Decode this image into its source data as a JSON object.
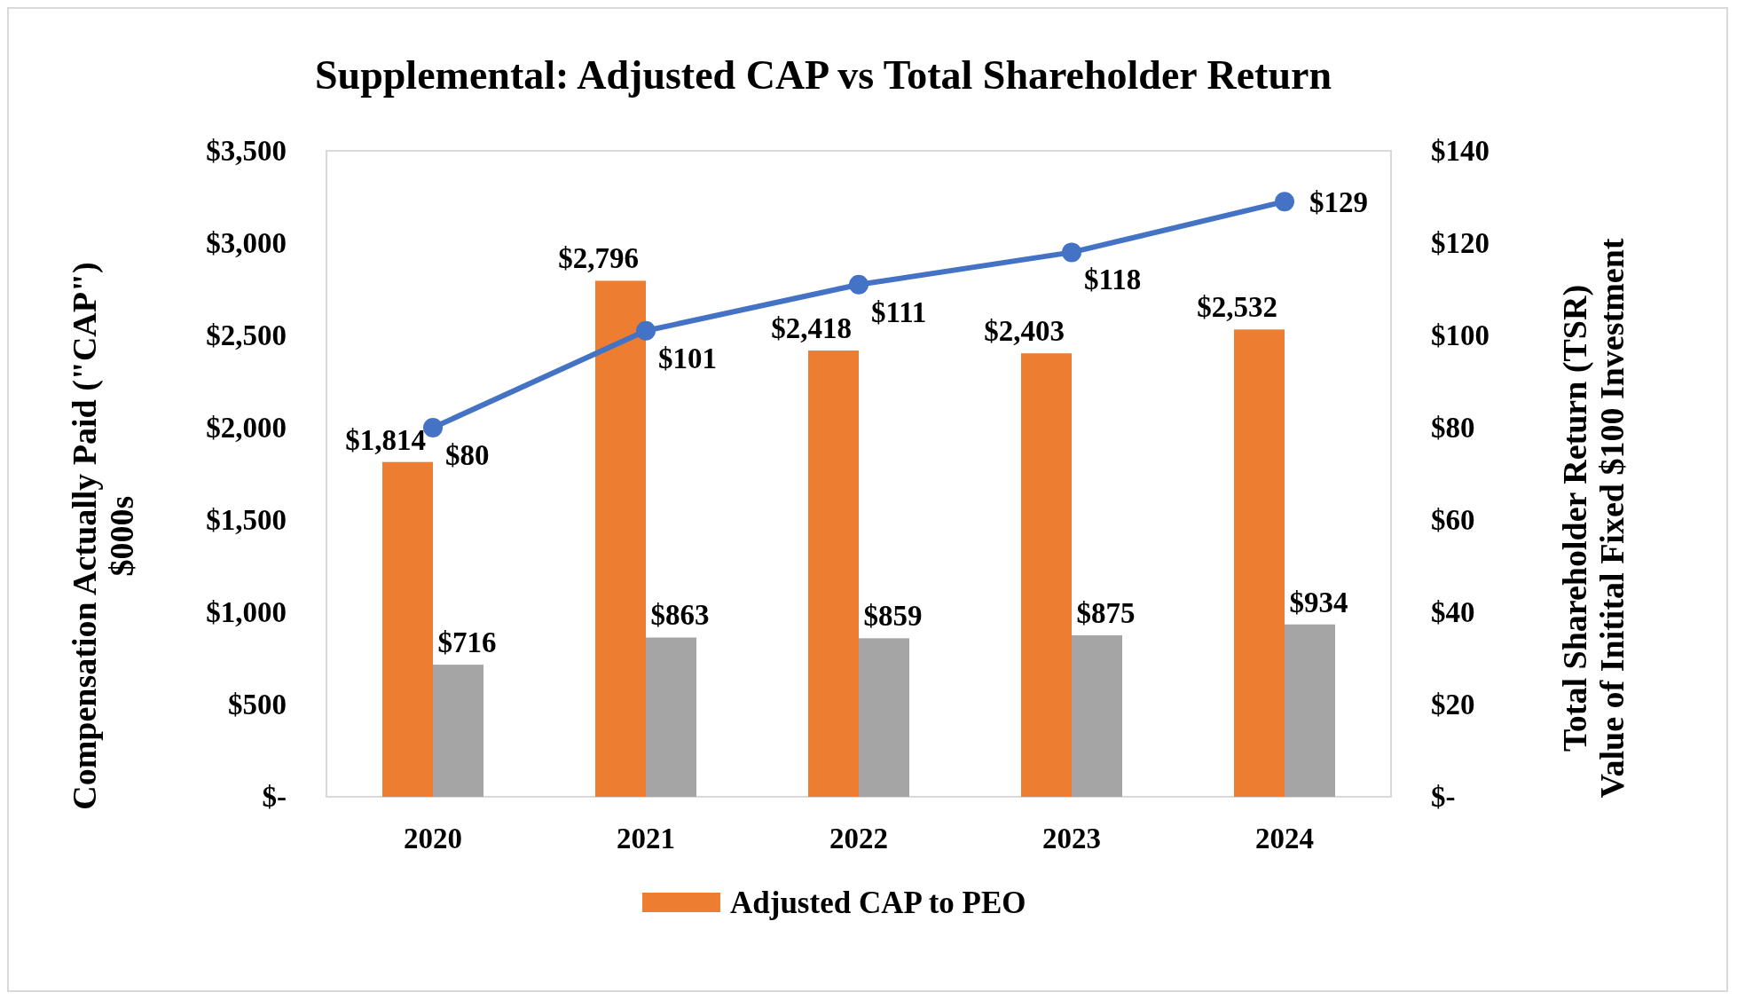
{
  "chart_data": {
    "type": "bar",
    "title": "Supplemental:  Adjusted CAP vs Total Shareholder Return",
    "ylabel": "Compensation  Actually  Paid (\"CAP\")\n$000s",
    "y2label": "Total Shareholder  Return (TSR)\nValue of Initital Fixed $100 Investment",
    "categories": [
      "2020",
      "2021",
      "2022",
      "2023",
      "2024"
    ],
    "series": [
      {
        "name": "Adjusted CAP to PEO",
        "color": "#ed7d31",
        "values": [
          1814,
          2796,
          2418,
          2403,
          2532
        ],
        "value_labels": [
          "$1,814",
          "$2,796",
          "$2,418",
          "$2,403",
          "$2,532"
        ]
      },
      {
        "color": "#a5a5a5",
        "values": [
          716,
          863,
          859,
          875,
          934
        ],
        "value_labels": [
          "$716",
          "$863",
          "$859",
          "$875",
          "$934"
        ]
      },
      {
        "type": "line",
        "axis": "y2",
        "color": "#4472c4",
        "marker": "circle",
        "values": [
          80,
          101,
          111,
          118,
          129
        ],
        "value_labels": [
          "$80",
          "$101",
          "$111",
          "$118",
          "$129"
        ]
      }
    ],
    "ylim": [
      0,
      3500
    ],
    "yticks": [
      {
        "value": 0,
        "label": "$-"
      },
      {
        "value": 500,
        "label": "$500"
      },
      {
        "value": 1000,
        "label": "$1,000"
      },
      {
        "value": 1500,
        "label": "$1,500"
      },
      {
        "value": 2000,
        "label": "$2,000"
      },
      {
        "value": 2500,
        "label": "$2,500"
      },
      {
        "value": 3000,
        "label": "$3,000"
      },
      {
        "value": 3500,
        "label": "$3,500"
      }
    ],
    "y2lim": [
      0,
      140
    ],
    "y2ticks": [
      {
        "value": 0,
        "label": "$-"
      },
      {
        "value": 20,
        "label": "$20"
      },
      {
        "value": 40,
        "label": "$40"
      },
      {
        "value": 60,
        "label": "$60"
      },
      {
        "value": 80,
        "label": "$80"
      },
      {
        "value": 100,
        "label": "$100"
      },
      {
        "value": 120,
        "label": "$120"
      },
      {
        "value": 140,
        "label": "$140"
      }
    ],
    "grid": false,
    "legend": "bottom"
  }
}
